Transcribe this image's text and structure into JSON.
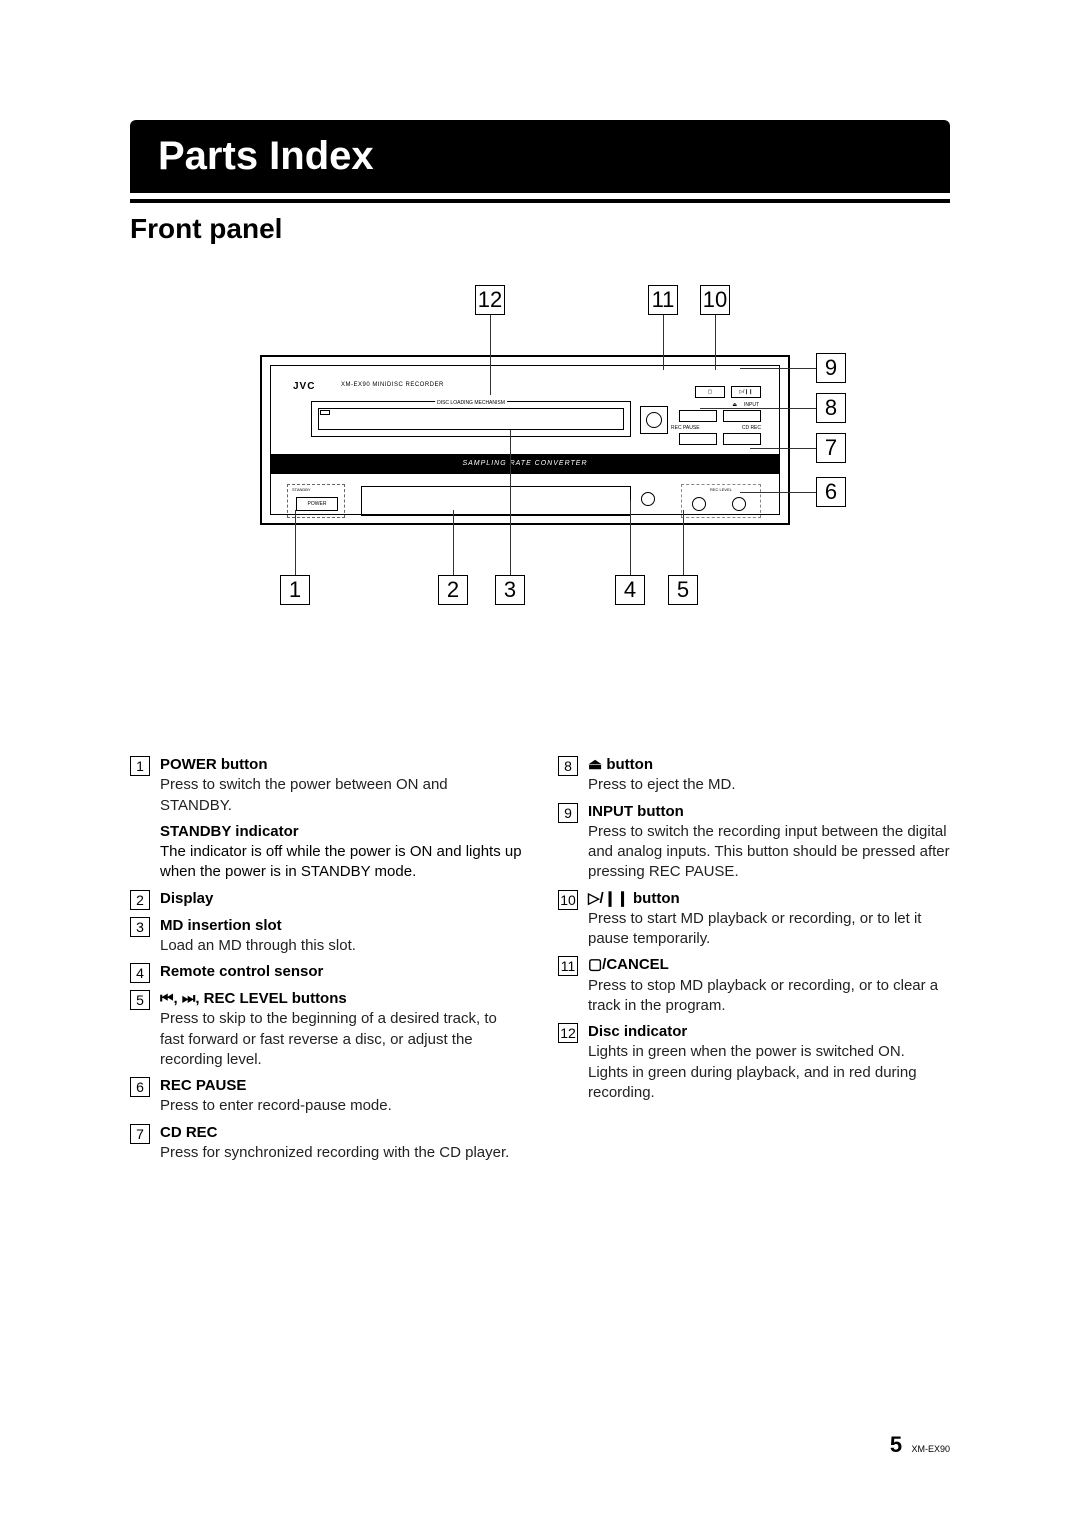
{
  "title": "Parts Index",
  "subtitle": "Front panel",
  "diagram": {
    "brand": "JVC",
    "model": "XM-EX90    MINIDISC  RECORDER",
    "sampling": "SAMPLING  RATE CONVERTER",
    "slot_label": "DISC LOADING MECHANISM",
    "power": "POWER",
    "standby": "STANDBY",
    "rec_level": "REC LEVEL",
    "input_label": "INPUT",
    "rec_pause": "REC PAUSE",
    "cd_rec": "CD REC"
  },
  "callouts": {
    "top": {
      "n12": "12",
      "n11": "11",
      "n10": "10"
    },
    "right": {
      "n9": "9",
      "n8": "8",
      "n7": "7",
      "n6": "6"
    },
    "bottom": {
      "n1": "1",
      "n2": "2",
      "n3": "3",
      "n4": "4",
      "n5": "5"
    }
  },
  "left": [
    {
      "n": "1",
      "t": "POWER button",
      "d": "Press to switch the power between ON and STANDBY."
    },
    {
      "sub": true,
      "t": "STANDBY indicator",
      "d": "The indicator is off while the power is ON and lights up when the power is in STANDBY mode."
    },
    {
      "n": "2",
      "t": "Display",
      "d": ""
    },
    {
      "n": "3",
      "t": "MD insertion slot",
      "d": "Load an MD through this slot."
    },
    {
      "n": "4",
      "t": "Remote control sensor",
      "d": ""
    },
    {
      "n": "5",
      "t": "⏮, ⏭, REC LEVEL buttons",
      "d": "Press to skip to the beginning of a desired track, to fast forward or fast reverse a disc, or adjust the recording level."
    },
    {
      "n": "6",
      "t": "REC PAUSE",
      "d": "Press to enter record-pause mode."
    },
    {
      "n": "7",
      "t": "CD REC",
      "d": "Press for synchronized recording with the CD player."
    }
  ],
  "right_items": [
    {
      "n": "8",
      "t": "⏏ button",
      "d": "Press to eject the MD."
    },
    {
      "n": "9",
      "t": "INPUT button",
      "d": "Press to switch the recording input between the digital and analog inputs. This button should be pressed after pressing REC PAUSE."
    },
    {
      "n": "10",
      "t": "▷/❙❙ button",
      "d": "Press to start MD playback or recording, or to let it pause temporarily."
    },
    {
      "n": "11",
      "t": "▢/CANCEL",
      "d": "Press to stop MD playback or recording, or to clear a track in the program."
    },
    {
      "n": "12",
      "t": "Disc indicator",
      "d": "Lights in green when the power is switched ON.\nLights in green during playback, and in red during recording."
    }
  ],
  "footer": {
    "page": "5",
    "model": "XM-EX90"
  },
  "colors": {
    "black": "#000000",
    "white": "#ffffff"
  }
}
